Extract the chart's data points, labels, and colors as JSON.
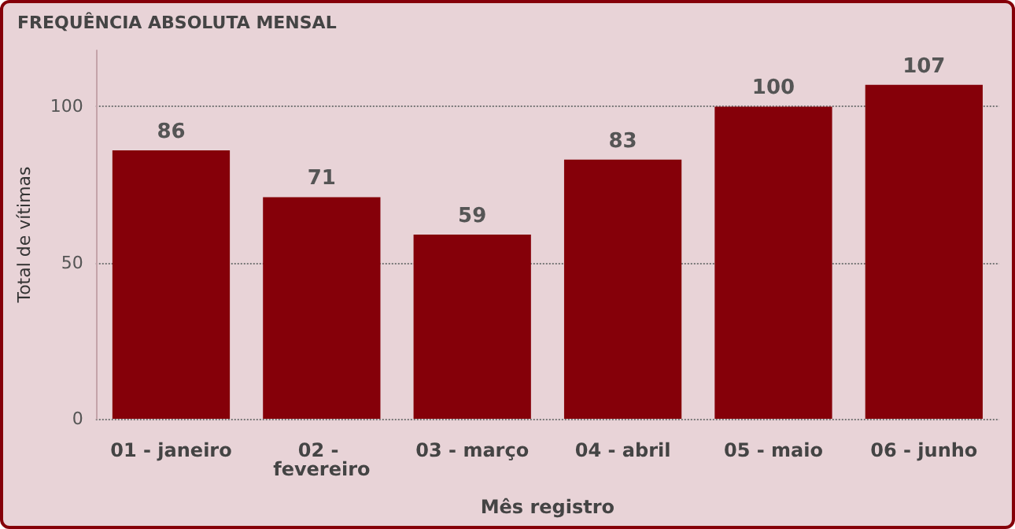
{
  "chart_data": {
    "type": "bar",
    "title": "FREQUÊNCIA ABSOLUTA MENSAL",
    "xlabel": "Mês registro",
    "ylabel": "Total de vítimas",
    "categories": [
      "01 - janeiro",
      "02 - fevereiro",
      "03 - março",
      "04 - abril",
      "05 - maio",
      "06 - junho"
    ],
    "values": [
      86,
      71,
      59,
      83,
      100,
      107
    ],
    "color": "#850009",
    "data_labels": true,
    "ylim": [
      0,
      118
    ],
    "yticks": [
      0,
      50,
      100
    ],
    "grid": "y"
  }
}
